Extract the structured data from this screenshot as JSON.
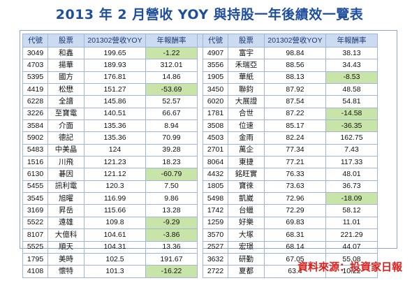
{
  "title": "2013 年 2 月營收 YOY 與持股一年後績效一覽表",
  "headers": [
    "代號",
    "股票",
    "201302營收YOY",
    "年報酬率"
  ],
  "colors": {
    "header_bg": "#cddbf0",
    "negative_highlight": "#c9e4a8",
    "title": "#1f4e9c",
    "source": "#e0201a"
  },
  "left_rows": [
    {
      "code": "3049",
      "name": "和鑫",
      "yoy": "199.65",
      "ret": "-1.22"
    },
    {
      "code": "4703",
      "name": "揚華",
      "yoy": "189.93",
      "ret": "312.01"
    },
    {
      "code": "5395",
      "name": "國方",
      "yoy": "176.81",
      "ret": "14.86"
    },
    {
      "code": "4419",
      "name": "松懋",
      "yoy": "151.27",
      "ret": "-53.69"
    },
    {
      "code": "6228",
      "name": "全譜",
      "yoy": "145.86",
      "ret": "52.57"
    },
    {
      "code": "3226",
      "name": "至寶電",
      "yoy": "140.51",
      "ret": "66.67"
    },
    {
      "code": "3584",
      "name": "介面",
      "yoy": "135.36",
      "ret": "8.94"
    },
    {
      "code": "5902",
      "name": "德記",
      "yoy": "135.36",
      "ret": "70.99"
    },
    {
      "code": "5483",
      "name": "中美晶",
      "yoy": "124",
      "ret": "39.28"
    },
    {
      "code": "1516",
      "name": "川飛",
      "yoy": "121.23",
      "ret": "18.23"
    },
    {
      "code": "6130",
      "name": "碁因",
      "yoy": "121.12",
      "ret": "-60.79"
    },
    {
      "code": "5455",
      "name": "訊利電",
      "yoy": "120.3",
      "ret": "7.50"
    },
    {
      "code": "3545",
      "name": "旭曜",
      "yoy": "116.99",
      "ret": "9.86"
    },
    {
      "code": "3169",
      "name": "昇岳",
      "yoy": "115.66",
      "ret": "13.28"
    },
    {
      "code": "5522",
      "name": "遠雄",
      "yoy": "109.8",
      "ret": "-9.29"
    },
    {
      "code": "8107",
      "name": "大億科",
      "yoy": "104.61",
      "ret": "-3.86"
    },
    {
      "code": "5525",
      "name": "順天",
      "yoy": "104.31",
      "ret": "13.36"
    },
    {
      "code": "1795",
      "name": "美時",
      "yoy": "102.5",
      "ret": "191.67"
    },
    {
      "code": "4108",
      "name": "懷特",
      "yoy": "101.3",
      "ret": "-16.22"
    }
  ],
  "right_rows": [
    {
      "code": "4907",
      "name": "富宇",
      "yoy": "98.84",
      "ret": "38.13"
    },
    {
      "code": "3556",
      "name": "禾瑞亞",
      "yoy": "88.56",
      "ret": "34.43"
    },
    {
      "code": "1905",
      "name": "華紙",
      "yoy": "88.13",
      "ret": "-8.53"
    },
    {
      "code": "3450",
      "name": "聯鈞",
      "yoy": "87.92",
      "ret": "48.58"
    },
    {
      "code": "6020",
      "name": "大展證",
      "yoy": "87.54",
      "ret": "54.81"
    },
    {
      "code": "1781",
      "name": "合世",
      "yoy": "87.22",
      "ret": "-14.58"
    },
    {
      "code": "3508",
      "name": "位速",
      "yoy": "85.17",
      "ret": "-36.35"
    },
    {
      "code": "4503",
      "name": "金雨",
      "yoy": "82.24",
      "ret": "162.75"
    },
    {
      "code": "2701",
      "name": "萬企",
      "yoy": "77.34",
      "ret": "7.43"
    },
    {
      "code": "8064",
      "name": "東捷",
      "yoy": "77.21",
      "ret": "117.33"
    },
    {
      "code": "4432",
      "name": "銘旺實",
      "yoy": "76.33",
      "ret": "48.01"
    },
    {
      "code": "1805",
      "name": "寶徠",
      "yoy": "73.63",
      "ret": "36.73"
    },
    {
      "code": "5498",
      "name": "凱崴",
      "yoy": "72.96",
      "ret": "-18.09"
    },
    {
      "code": "1742",
      "name": "台蠟",
      "yoy": "72.29",
      "ret": "58.12"
    },
    {
      "code": "1259",
      "name": "好樂",
      "yoy": "69.83",
      "ret": "11.01"
    },
    {
      "code": "3570",
      "name": "大塚",
      "yoy": "68.31",
      "ret": "221.29"
    },
    {
      "code": "2527",
      "name": "宏璟",
      "yoy": "68.14",
      "ret": "44.07"
    },
    {
      "code": "3632",
      "name": "研勤",
      "yoy": "67.05",
      "ret": "55.08"
    },
    {
      "code": "2722",
      "name": "夏都",
      "yoy": "63.4",
      "ret": "10.22"
    }
  ],
  "source": "資料來源：投資家日報"
}
